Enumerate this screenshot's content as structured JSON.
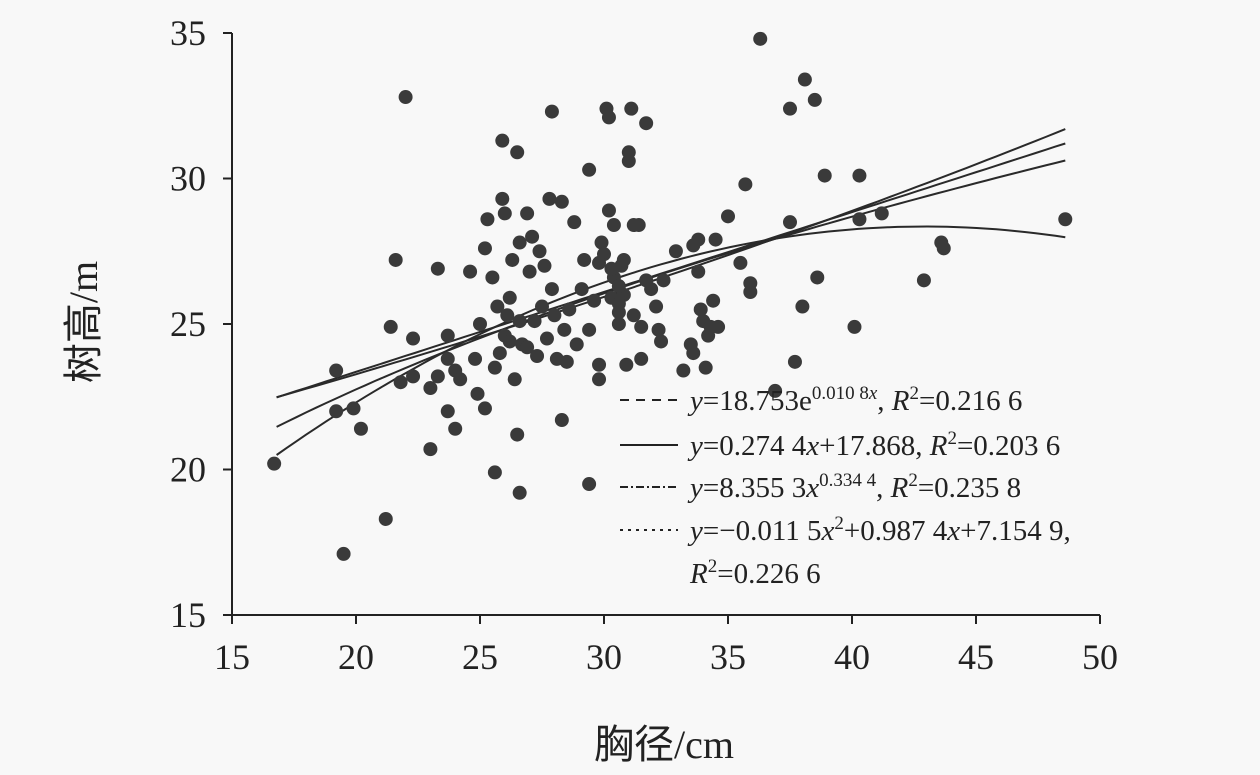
{
  "chart_data": {
    "type": "scatter",
    "xlabel": "胸径/cm",
    "ylabel": "树高/m",
    "xlim": [
      15,
      50
    ],
    "ylim": [
      15,
      35
    ],
    "xticks": [
      "15",
      "20",
      "25",
      "30",
      "35",
      "40",
      "45",
      "50"
    ],
    "yticks": [
      "15",
      "20",
      "25",
      "30",
      "35"
    ],
    "grid": false,
    "legend_position": "bottom-right",
    "point_color": "#3a3a3a",
    "line_color": "#2a2a2a",
    "points": [
      [
        16.7,
        20.2
      ],
      [
        19.2,
        23.4
      ],
      [
        19.2,
        22.0
      ],
      [
        19.5,
        17.1
      ],
      [
        19.9,
        22.1
      ],
      [
        20.2,
        21.4
      ],
      [
        21.2,
        18.3
      ],
      [
        21.4,
        24.9
      ],
      [
        21.6,
        27.2
      ],
      [
        21.8,
        23.0
      ],
      [
        22.0,
        32.8
      ],
      [
        22.3,
        24.5
      ],
      [
        22.3,
        23.2
      ],
      [
        23.0,
        20.7
      ],
      [
        23.0,
        22.8
      ],
      [
        23.3,
        26.9
      ],
      [
        23.3,
        23.2
      ],
      [
        23.7,
        24.6
      ],
      [
        23.7,
        22.0
      ],
      [
        23.7,
        23.8
      ],
      [
        24.0,
        23.4
      ],
      [
        24.0,
        21.4
      ],
      [
        24.2,
        23.1
      ],
      [
        24.6,
        26.8
      ],
      [
        24.8,
        23.8
      ],
      [
        24.9,
        22.6
      ],
      [
        25.0,
        25.0
      ],
      [
        25.2,
        22.1
      ],
      [
        25.2,
        27.6
      ],
      [
        25.3,
        28.6
      ],
      [
        25.5,
        26.6
      ],
      [
        25.6,
        23.5
      ],
      [
        25.6,
        19.9
      ],
      [
        25.7,
        25.6
      ],
      [
        25.8,
        24.0
      ],
      [
        25.9,
        31.3
      ],
      [
        25.9,
        29.3
      ],
      [
        26.0,
        28.8
      ],
      [
        26.0,
        24.6
      ],
      [
        26.1,
        25.3
      ],
      [
        26.2,
        25.9
      ],
      [
        26.2,
        24.4
      ],
      [
        26.3,
        27.2
      ],
      [
        26.4,
        23.1
      ],
      [
        26.5,
        30.9
      ],
      [
        26.5,
        21.2
      ],
      [
        26.6,
        27.8
      ],
      [
        26.6,
        19.2
      ],
      [
        26.6,
        25.1
      ],
      [
        26.7,
        24.3
      ],
      [
        26.9,
        24.2
      ],
      [
        26.9,
        28.8
      ],
      [
        27.0,
        26.8
      ],
      [
        27.1,
        28.0
      ],
      [
        27.2,
        25.1
      ],
      [
        27.3,
        23.9
      ],
      [
        27.4,
        27.5
      ],
      [
        27.5,
        25.6
      ],
      [
        27.6,
        27.0
      ],
      [
        27.7,
        24.5
      ],
      [
        27.8,
        29.3
      ],
      [
        27.9,
        32.3
      ],
      [
        27.9,
        26.2
      ],
      [
        28.0,
        25.3
      ],
      [
        28.1,
        23.8
      ],
      [
        28.3,
        21.7
      ],
      [
        28.3,
        29.2
      ],
      [
        28.4,
        24.8
      ],
      [
        28.5,
        23.7
      ],
      [
        28.6,
        25.5
      ],
      [
        28.8,
        28.5
      ],
      [
        28.9,
        24.3
      ],
      [
        29.1,
        26.2
      ],
      [
        29.2,
        27.2
      ],
      [
        29.4,
        30.3
      ],
      [
        29.4,
        19.5
      ],
      [
        29.4,
        24.8
      ],
      [
        29.6,
        25.8
      ],
      [
        29.8,
        23.6
      ],
      [
        29.8,
        23.1
      ],
      [
        29.9,
        27.8
      ],
      [
        30.0,
        27.4
      ],
      [
        30.1,
        32.4
      ],
      [
        30.2,
        32.1
      ],
      [
        30.2,
        28.9
      ],
      [
        30.3,
        25.9
      ],
      [
        30.4,
        28.4
      ],
      [
        30.4,
        26.6
      ],
      [
        30.6,
        25.4
      ],
      [
        30.6,
        25.0
      ],
      [
        30.7,
        27.0
      ],
      [
        30.8,
        26.0
      ],
      [
        30.9,
        23.6
      ],
      [
        31.0,
        30.9
      ],
      [
        31.0,
        30.6
      ],
      [
        31.1,
        32.4
      ],
      [
        31.2,
        28.4
      ],
      [
        31.2,
        25.3
      ],
      [
        31.4,
        28.4
      ],
      [
        31.5,
        24.9
      ],
      [
        31.5,
        23.8
      ],
      [
        31.7,
        31.9
      ],
      [
        31.7,
        26.5
      ],
      [
        31.9,
        26.2
      ],
      [
        32.1,
        25.6
      ],
      [
        32.2,
        24.8
      ],
      [
        32.3,
        24.4
      ],
      [
        32.4,
        26.5
      ],
      [
        32.9,
        27.5
      ],
      [
        33.2,
        23.4
      ],
      [
        33.5,
        24.3
      ],
      [
        33.6,
        27.7
      ],
      [
        33.6,
        24.0
      ],
      [
        33.8,
        26.8
      ],
      [
        33.8,
        27.9
      ],
      [
        33.9,
        25.5
      ],
      [
        34.0,
        25.1
      ],
      [
        34.1,
        23.5
      ],
      [
        34.2,
        24.6
      ],
      [
        34.3,
        24.9
      ],
      [
        34.4,
        25.8
      ],
      [
        34.5,
        27.9
      ],
      [
        34.6,
        24.9
      ],
      [
        35.0,
        28.7
      ],
      [
        35.5,
        27.1
      ],
      [
        35.7,
        29.8
      ],
      [
        35.9,
        26.4
      ],
      [
        35.9,
        26.1
      ],
      [
        36.3,
        34.8
      ],
      [
        36.9,
        22.7
      ],
      [
        37.5,
        32.4
      ],
      [
        37.5,
        28.5
      ],
      [
        37.7,
        23.7
      ],
      [
        38.0,
        25.6
      ],
      [
        38.1,
        33.4
      ],
      [
        38.5,
        32.7
      ],
      [
        38.6,
        26.6
      ],
      [
        38.9,
        30.1
      ],
      [
        40.1,
        24.9
      ],
      [
        40.3,
        30.1
      ],
      [
        40.3,
        28.6
      ],
      [
        41.2,
        28.8
      ],
      [
        42.9,
        26.5
      ],
      [
        43.6,
        27.8
      ],
      [
        43.7,
        27.6
      ],
      [
        48.6,
        28.6
      ],
      [
        30.3,
        26.9
      ],
      [
        30.6,
        26.3
      ],
      [
        30.8,
        27.2
      ],
      [
        30.6,
        25.7
      ],
      [
        29.8,
        27.1
      ]
    ],
    "fit_range": [
      16.8,
      48.6
    ],
    "fits": [
      {
        "model": "exponential",
        "a": 18.753,
        "b": 0.0108,
        "r2": 0.2166,
        "legend_dash": "dashed",
        "parts": [
          {
            "t": "y",
            "i": true
          },
          {
            "t": "=18.753e"
          },
          {
            "t": "0.010 8",
            "sup": true
          },
          {
            "t": "x",
            "sup": true,
            "i": true
          },
          {
            "t": ", "
          },
          {
            "t": "R",
            "i": true
          },
          {
            "t": "2",
            "sup": true
          },
          {
            "t": "=0.216 6"
          }
        ]
      },
      {
        "model": "linear",
        "a": 0.2744,
        "b": 17.868,
        "r2": 0.2036,
        "legend_dash": "solid",
        "parts": [
          {
            "t": "y",
            "i": true
          },
          {
            "t": "=0.274 4"
          },
          {
            "t": "x",
            "i": true
          },
          {
            "t": "+17.868, "
          },
          {
            "t": "R",
            "i": true
          },
          {
            "t": "2",
            "sup": true
          },
          {
            "t": "=0.203 6"
          }
        ]
      },
      {
        "model": "power",
        "a": 8.3553,
        "b": 0.3344,
        "r2": 0.2358,
        "legend_dash": "dash-dot",
        "parts": [
          {
            "t": "y",
            "i": true
          },
          {
            "t": "=8.355 3"
          },
          {
            "t": "x",
            "i": true
          },
          {
            "t": "0.334 4",
            "sup": true
          },
          {
            "t": ", "
          },
          {
            "t": "R",
            "i": true
          },
          {
            "t": "2",
            "sup": true
          },
          {
            "t": "=0.235 8"
          }
        ]
      },
      {
        "model": "quadratic",
        "a": -0.0115,
        "b": 0.9874,
        "c": 7.1549,
        "r2": 0.2266,
        "legend_dash": "dotted",
        "parts": [
          {
            "t": "y",
            "i": true
          },
          {
            "t": "=−0.011 5"
          },
          {
            "t": "x",
            "i": true
          },
          {
            "t": "2",
            "sup": true
          },
          {
            "t": "+0.987 4"
          },
          {
            "t": "x",
            "i": true
          },
          {
            "t": "+7.154 9,"
          }
        ],
        "parts2": [
          {
            "t": "R",
            "i": true
          },
          {
            "t": "2",
            "sup": true
          },
          {
            "t": "=0.226 6"
          }
        ]
      }
    ]
  }
}
